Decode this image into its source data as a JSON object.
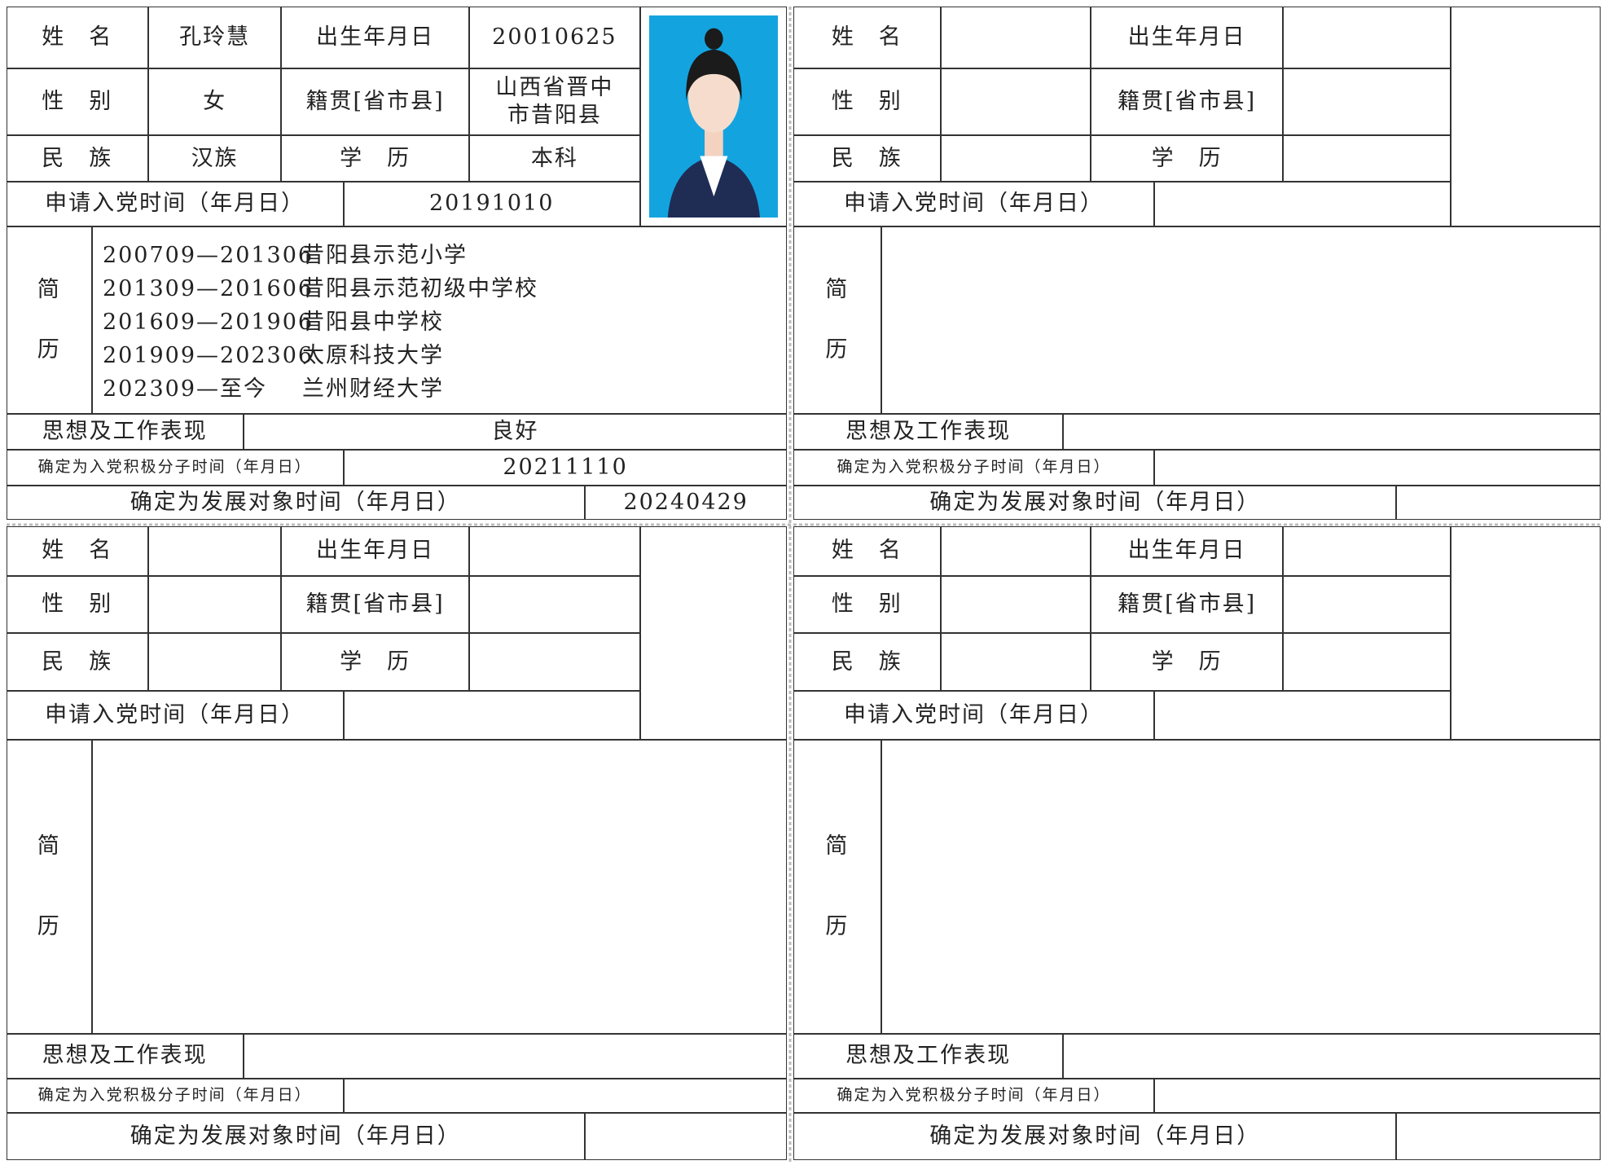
{
  "panels": [
    {
      "name_label": "姓　名",
      "name": "孔玲慧",
      "birth_label": "出生年月日",
      "birth": "20010625",
      "gender_label": "性　别",
      "gender": "女",
      "origin_label": "籍贯[省市县]",
      "origin": "山西省晋中市昔阳县",
      "ethnicity_label": "民　族",
      "ethnicity": "汉族",
      "education_label": "学　历",
      "education": "本科",
      "apply_label": "申请入党时间（年月日）",
      "apply": "20191010",
      "resume_label": [
        "简",
        "历"
      ],
      "resume": [
        {
          "period": "200709—201306",
          "school": "昔阳县示范小学"
        },
        {
          "period": "201309—201606",
          "school": "昔阳县示范初级中学校"
        },
        {
          "period": "201609—201906",
          "school": "昔阳县中学校"
        },
        {
          "period": "201909—202306",
          "school": "太原科技大学"
        },
        {
          "period": "202309—至今",
          "school": "兰州财经大学"
        }
      ],
      "conduct_label": "思想及工作表现",
      "conduct": "良好",
      "activist_label": "确定为入党积极分子时间（年月日）",
      "activist": "20211110",
      "candidate_label": "确定为发展对象时间（年月日）",
      "candidate": "20240429"
    },
    {
      "name_label": "姓　名",
      "birth_label": "出生年月日",
      "gender_label": "性　别",
      "origin_label": "籍贯[省市县]",
      "ethnicity_label": "民　族",
      "education_label": "学　历",
      "apply_label": "申请入党时间（年月日）",
      "resume_label": [
        "简",
        "历"
      ],
      "conduct_label": "思想及工作表现",
      "activist_label": "确定为入党积极分子时间（年月日）",
      "candidate_label": "确定为发展对象时间（年月日）"
    },
    {
      "name_label": "姓　名",
      "birth_label": "出生年月日",
      "gender_label": "性　别",
      "origin_label": "籍贯[省市县]",
      "ethnicity_label": "民　族",
      "education_label": "学　历",
      "apply_label": "申请入党时间（年月日）",
      "resume_label": [
        "简",
        "历"
      ],
      "conduct_label": "思想及工作表现",
      "activist_label": "确定为入党积极分子时间（年月日）",
      "candidate_label": "确定为发展对象时间（年月日）"
    },
    {
      "name_label": "姓　名",
      "birth_label": "出生年月日",
      "gender_label": "性　别",
      "origin_label": "籍贯[省市县]",
      "ethnicity_label": "民　族",
      "education_label": "学　历",
      "apply_label": "申请入党时间（年月日）",
      "resume_label": [
        "简",
        "历"
      ],
      "conduct_label": "思想及工作表现",
      "activist_label": "确定为入党积极分子时间（年月日）",
      "candidate_label": "确定为发展对象时间（年月日）"
    }
  ]
}
